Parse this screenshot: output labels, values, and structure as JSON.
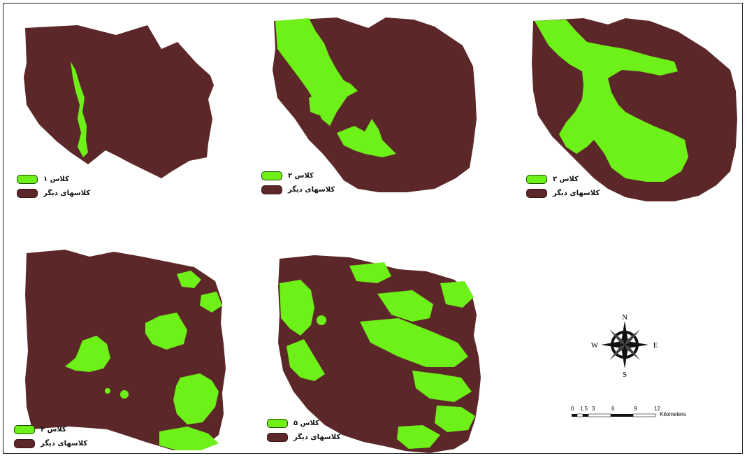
{
  "colors": {
    "target_class": "#6ef019",
    "other_classes": "#5c2728",
    "border": "#1d4d00"
  },
  "panels": [
    {
      "id": "class-1",
      "legend": {
        "target_label": "کلاس ۱",
        "other_label": "کلاسهای دیگر"
      }
    },
    {
      "id": "class-2",
      "legend": {
        "target_label": "کلاس ۲",
        "other_label": "کلاسهای دیگر"
      }
    },
    {
      "id": "class-3",
      "legend": {
        "target_label": "کلاس ۳",
        "other_label": "کلاسهای دیگر"
      }
    },
    {
      "id": "class-4",
      "legend": {
        "target_label": "کلاس ۴",
        "other_label": "کلاسهای دیگر"
      }
    },
    {
      "id": "class-5",
      "legend": {
        "target_label": "کلاس ۵",
        "other_label": "کلاسهای دیگر"
      }
    }
  ],
  "compass": {
    "n": "N",
    "s": "S",
    "e": "E",
    "w": "W"
  },
  "scale_bar": {
    "ticks": [
      "0",
      "1.5",
      "3",
      "6",
      "9",
      "12"
    ],
    "units": "Kilometers"
  }
}
